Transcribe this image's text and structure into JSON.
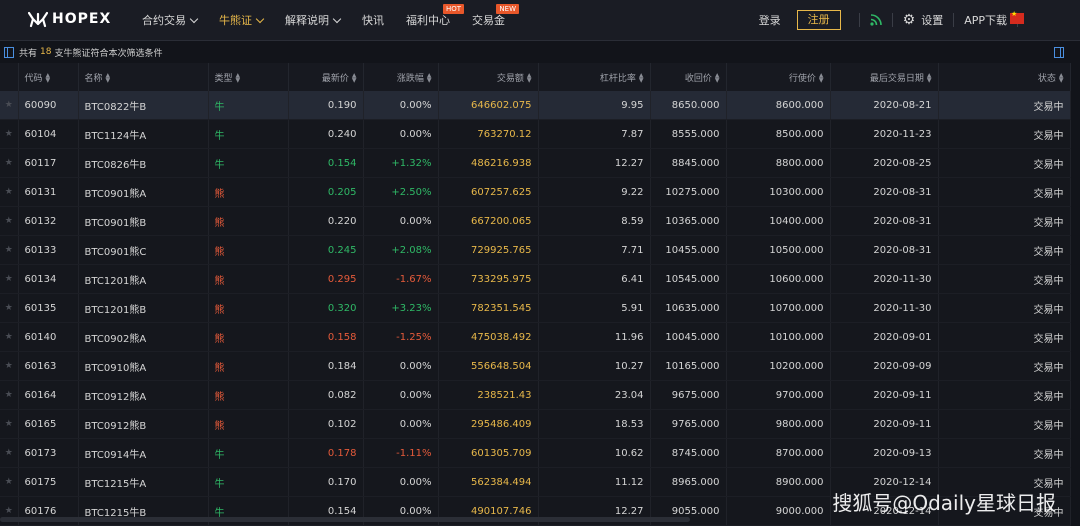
{
  "header": {
    "logo_text": "HOPEX",
    "nav": [
      {
        "label": "合约交易",
        "has_dropdown": true,
        "active": false,
        "badge": ""
      },
      {
        "label": "牛熊证",
        "has_dropdown": true,
        "active": true,
        "badge": ""
      },
      {
        "label": "解释说明",
        "has_dropdown": true,
        "active": false,
        "badge": ""
      },
      {
        "label": "快讯",
        "has_dropdown": false,
        "active": false,
        "badge": ""
      },
      {
        "label": "福利中心",
        "has_dropdown": false,
        "active": false,
        "badge": "HOT"
      },
      {
        "label": "交易金",
        "has_dropdown": false,
        "active": false,
        "badge": "NEW"
      }
    ],
    "login_label": "登录",
    "register_label": "注册",
    "settings_label": "设置",
    "app_download_label": "APP下载"
  },
  "info": {
    "prefix": "共有",
    "count": "18",
    "suffix": "支牛熊证符合本次筛选条件"
  },
  "table": {
    "columns": [
      "代码",
      "名称",
      "类型",
      "最新价",
      "涨跌幅",
      "交易额",
      "杠杆比率",
      "收回价",
      "行使价",
      "最后交易日期",
      "状态"
    ],
    "rows": [
      {
        "code": "60090",
        "name": "BTC0822牛B",
        "type": "牛",
        "kind": "bull",
        "price": "0.190",
        "price_dir": "neutral",
        "change": "0.00%",
        "change_dir": "neutral",
        "volume": "646602.075",
        "leverage": "9.95",
        "callback": "8650.000",
        "strike": "8600.000",
        "last_date": "2020-08-21",
        "status": "交易中"
      },
      {
        "code": "60104",
        "name": "BTC1124牛A",
        "type": "牛",
        "kind": "bull",
        "price": "0.240",
        "price_dir": "neutral",
        "change": "0.00%",
        "change_dir": "neutral",
        "volume": "763270.12",
        "leverage": "7.87",
        "callback": "8555.000",
        "strike": "8500.000",
        "last_date": "2020-11-23",
        "status": "交易中"
      },
      {
        "code": "60117",
        "name": "BTC0826牛B",
        "type": "牛",
        "kind": "bull",
        "price": "0.154",
        "price_dir": "up",
        "change": "+1.32%",
        "change_dir": "up",
        "volume": "486216.938",
        "leverage": "12.27",
        "callback": "8845.000",
        "strike": "8800.000",
        "last_date": "2020-08-25",
        "status": "交易中"
      },
      {
        "code": "60131",
        "name": "BTC0901熊A",
        "type": "熊",
        "kind": "bear",
        "price": "0.205",
        "price_dir": "up",
        "change": "+2.50%",
        "change_dir": "up",
        "volume": "607257.625",
        "leverage": "9.22",
        "callback": "10275.000",
        "strike": "10300.000",
        "last_date": "2020-08-31",
        "status": "交易中"
      },
      {
        "code": "60132",
        "name": "BTC0901熊B",
        "type": "熊",
        "kind": "bear",
        "price": "0.220",
        "price_dir": "neutral",
        "change": "0.00%",
        "change_dir": "neutral",
        "volume": "667200.065",
        "leverage": "8.59",
        "callback": "10365.000",
        "strike": "10400.000",
        "last_date": "2020-08-31",
        "status": "交易中"
      },
      {
        "code": "60133",
        "name": "BTC0901熊C",
        "type": "熊",
        "kind": "bear",
        "price": "0.245",
        "price_dir": "up",
        "change": "+2.08%",
        "change_dir": "up",
        "volume": "729925.765",
        "leverage": "7.71",
        "callback": "10455.000",
        "strike": "10500.000",
        "last_date": "2020-08-31",
        "status": "交易中"
      },
      {
        "code": "60134",
        "name": "BTC1201熊A",
        "type": "熊",
        "kind": "bear",
        "price": "0.295",
        "price_dir": "down",
        "change": "-1.67%",
        "change_dir": "down",
        "volume": "733295.975",
        "leverage": "6.41",
        "callback": "10545.000",
        "strike": "10600.000",
        "last_date": "2020-11-30",
        "status": "交易中"
      },
      {
        "code": "60135",
        "name": "BTC1201熊B",
        "type": "熊",
        "kind": "bear",
        "price": "0.320",
        "price_dir": "up",
        "change": "+3.23%",
        "change_dir": "up",
        "volume": "782351.545",
        "leverage": "5.91",
        "callback": "10635.000",
        "strike": "10700.000",
        "last_date": "2020-11-30",
        "status": "交易中"
      },
      {
        "code": "60140",
        "name": "BTC0902熊A",
        "type": "熊",
        "kind": "bear",
        "price": "0.158",
        "price_dir": "down",
        "change": "-1.25%",
        "change_dir": "down",
        "volume": "475038.492",
        "leverage": "11.96",
        "callback": "10045.000",
        "strike": "10100.000",
        "last_date": "2020-09-01",
        "status": "交易中"
      },
      {
        "code": "60163",
        "name": "BTC0910熊A",
        "type": "熊",
        "kind": "bear",
        "price": "0.184",
        "price_dir": "neutral",
        "change": "0.00%",
        "change_dir": "neutral",
        "volume": "556648.504",
        "leverage": "10.27",
        "callback": "10165.000",
        "strike": "10200.000",
        "last_date": "2020-09-09",
        "status": "交易中"
      },
      {
        "code": "60164",
        "name": "BTC0912熊A",
        "type": "熊",
        "kind": "bear",
        "price": "0.082",
        "price_dir": "neutral",
        "change": "0.00%",
        "change_dir": "neutral",
        "volume": "238521.43",
        "leverage": "23.04",
        "callback": "9675.000",
        "strike": "9700.000",
        "last_date": "2020-09-11",
        "status": "交易中"
      },
      {
        "code": "60165",
        "name": "BTC0912熊B",
        "type": "熊",
        "kind": "bear",
        "price": "0.102",
        "price_dir": "neutral",
        "change": "0.00%",
        "change_dir": "neutral",
        "volume": "295486.409",
        "leverage": "18.53",
        "callback": "9765.000",
        "strike": "9800.000",
        "last_date": "2020-09-11",
        "status": "交易中"
      },
      {
        "code": "60173",
        "name": "BTC0914牛A",
        "type": "牛",
        "kind": "bull",
        "price": "0.178",
        "price_dir": "down",
        "change": "-1.11%",
        "change_dir": "down",
        "volume": "601305.709",
        "leverage": "10.62",
        "callback": "8745.000",
        "strike": "8700.000",
        "last_date": "2020-09-13",
        "status": "交易中"
      },
      {
        "code": "60175",
        "name": "BTC1215牛A",
        "type": "牛",
        "kind": "bull",
        "price": "0.170",
        "price_dir": "neutral",
        "change": "0.00%",
        "change_dir": "neutral",
        "volume": "562384.494",
        "leverage": "11.12",
        "callback": "8965.000",
        "strike": "8900.000",
        "last_date": "2020-12-14",
        "status": "交易中"
      },
      {
        "code": "60176",
        "name": "BTC1215牛B",
        "type": "牛",
        "kind": "bull",
        "price": "0.154",
        "price_dir": "neutral",
        "change": "0.00%",
        "change_dir": "neutral",
        "volume": "490107.746",
        "leverage": "12.27",
        "callback": "9055.000",
        "strike": "9000.000",
        "last_date": "2020-12-14",
        "status": "交易中"
      }
    ]
  },
  "watermark": "搜狐号@Odaily星球日报",
  "colors": {
    "accent": "#e8b84a",
    "bull": "#2fb866",
    "bear": "#e55a3a",
    "up": "#2fb866",
    "down": "#e55a3a",
    "background": "#12141a"
  }
}
